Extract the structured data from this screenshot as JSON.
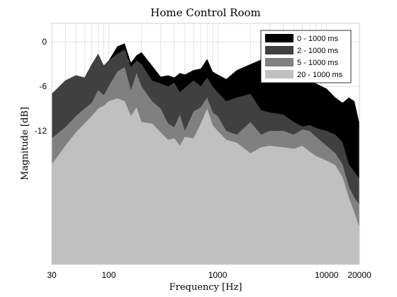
{
  "chart_data": {
    "type": "area",
    "title": "Home Control Room",
    "xlabel": "Frequency [Hz]",
    "ylabel": "Magnitude [dB]",
    "x_scale": "log",
    "xlim": [
      30,
      20000
    ],
    "ylim": [
      -30,
      2.5
    ],
    "x_ticks": [
      30,
      100,
      1000,
      10000,
      20000
    ],
    "x_tick_labels": [
      "30",
      "100",
      "1000",
      "10000",
      "20000"
    ],
    "y_ticks": [
      0,
      -6,
      -12
    ],
    "y_tick_labels": [
      "0",
      "-6",
      "-12"
    ],
    "grid": true,
    "legend_position": "top-right",
    "x": [
      30,
      40,
      50,
      60,
      70,
      80,
      90,
      100,
      120,
      140,
      160,
      180,
      200,
      250,
      300,
      350,
      400,
      450,
      500,
      600,
      700,
      800,
      900,
      1000,
      1200,
      1500,
      2000,
      2500,
      3000,
      4000,
      5000,
      6000,
      7000,
      8000,
      10000,
      12000,
      14000,
      16000,
      18000,
      20000
    ],
    "series": [
      {
        "name": "0 - 1000 ms",
        "color": "#000000",
        "values": [
          -7.0,
          -5.2,
          -4.5,
          -4.8,
          -3.0,
          -1.6,
          -3.2,
          -2.5,
          -0.6,
          -0.2,
          -2.8,
          -1.8,
          -1.4,
          -3.2,
          -4.7,
          -4.5,
          -4.8,
          -4.2,
          -4.4,
          -3.8,
          -3.6,
          -2.3,
          -4.0,
          -4.4,
          -5.0,
          -3.8,
          -3.0,
          -2.4,
          -1.5,
          -2.8,
          -5.2,
          -5.0,
          -5.4,
          -5.6,
          -6.3,
          -7.5,
          -8.2,
          -7.5,
          -8.0,
          -11.0
        ]
      },
      {
        "name": "2 - 1000 ms",
        "color": "#404040",
        "values": [
          -7.0,
          -5.2,
          -4.5,
          -4.8,
          -3.0,
          -1.6,
          -3.2,
          -2.5,
          -1.6,
          -1.0,
          -3.4,
          -2.5,
          -3.0,
          -5.2,
          -5.6,
          -6.0,
          -5.5,
          -6.8,
          -6.2,
          -5.2,
          -6.0,
          -4.8,
          -6.0,
          -6.8,
          -8.0,
          -7.5,
          -7.0,
          -9.2,
          -9.5,
          -9.8,
          -10.8,
          -11.4,
          -11.2,
          -11.6,
          -12.0,
          -12.5,
          -13.5,
          -16.5,
          -17.5,
          -18.5
        ]
      },
      {
        "name": "5 - 1000 ms",
        "color": "#808080",
        "values": [
          -13.0,
          -11.5,
          -10.0,
          -9.0,
          -8.2,
          -6.5,
          -7.2,
          -6.0,
          -4.0,
          -3.4,
          -6.5,
          -4.2,
          -6.0,
          -8.0,
          -9.0,
          -11.0,
          -11.5,
          -9.8,
          -12.0,
          -9.4,
          -8.8,
          -7.5,
          -9.5,
          -10.0,
          -12.0,
          -12.5,
          -10.8,
          -12.5,
          -12.0,
          -12.0,
          -12.5,
          -11.8,
          -12.0,
          -12.8,
          -14.0,
          -15.0,
          -16.5,
          -19.5,
          -21.0,
          -22.0
        ]
      },
      {
        "name": "20 - 1000 ms",
        "color": "#c0c0c0",
        "values": [
          -16.5,
          -14.0,
          -12.2,
          -11.0,
          -10.0,
          -9.0,
          -8.6,
          -8.0,
          -7.6,
          -8.0,
          -10.0,
          -8.8,
          -10.8,
          -11.0,
          -12.2,
          -13.2,
          -13.0,
          -14.0,
          -12.8,
          -13.0,
          -11.0,
          -9.0,
          -11.2,
          -12.0,
          -13.2,
          -13.6,
          -15.0,
          -14.2,
          -14.0,
          -14.2,
          -14.4,
          -14.0,
          -14.8,
          -15.4,
          -16.0,
          -16.6,
          -18.2,
          -21.0,
          -23.0,
          -25.0
        ]
      }
    ]
  }
}
